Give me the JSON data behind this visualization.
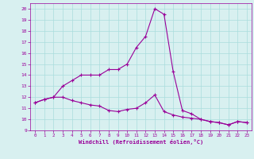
{
  "xlabel": "Windchill (Refroidissement éolien,°C)",
  "x": [
    0,
    1,
    2,
    3,
    4,
    5,
    6,
    7,
    8,
    9,
    10,
    11,
    12,
    13,
    14,
    15,
    16,
    17,
    18,
    19,
    20,
    21,
    22,
    23
  ],
  "line1": [
    11.5,
    11.8,
    12.0,
    12.0,
    11.7,
    11.5,
    11.3,
    11.2,
    10.8,
    10.7,
    10.9,
    11.0,
    11.5,
    12.2,
    10.7,
    10.4,
    10.2,
    10.1,
    10.0,
    9.8,
    9.7,
    9.5,
    9.8,
    9.7
  ],
  "line2": [
    11.5,
    11.8,
    12.0,
    13.0,
    13.5,
    14.0,
    14.0,
    14.0,
    14.5,
    14.5,
    15.0,
    16.5,
    17.5,
    20.0,
    19.5,
    14.3,
    10.8,
    10.5,
    10.0,
    9.8,
    9.7,
    9.5,
    9.8,
    9.7
  ],
  "line_color": "#990099",
  "bg_color": "#d8f0f0",
  "grid_color": "#aadddd",
  "xlim": [
    -0.5,
    23.5
  ],
  "ylim": [
    9,
    20.5
  ],
  "yticks": [
    9,
    10,
    11,
    12,
    13,
    14,
    15,
    16,
    17,
    18,
    19,
    20
  ],
  "xticks": [
    0,
    1,
    2,
    3,
    4,
    5,
    6,
    7,
    8,
    9,
    10,
    11,
    12,
    13,
    14,
    15,
    16,
    17,
    18,
    19,
    20,
    21,
    22,
    23
  ],
  "marker": "+",
  "markersize": 3,
  "linewidth": 0.8
}
